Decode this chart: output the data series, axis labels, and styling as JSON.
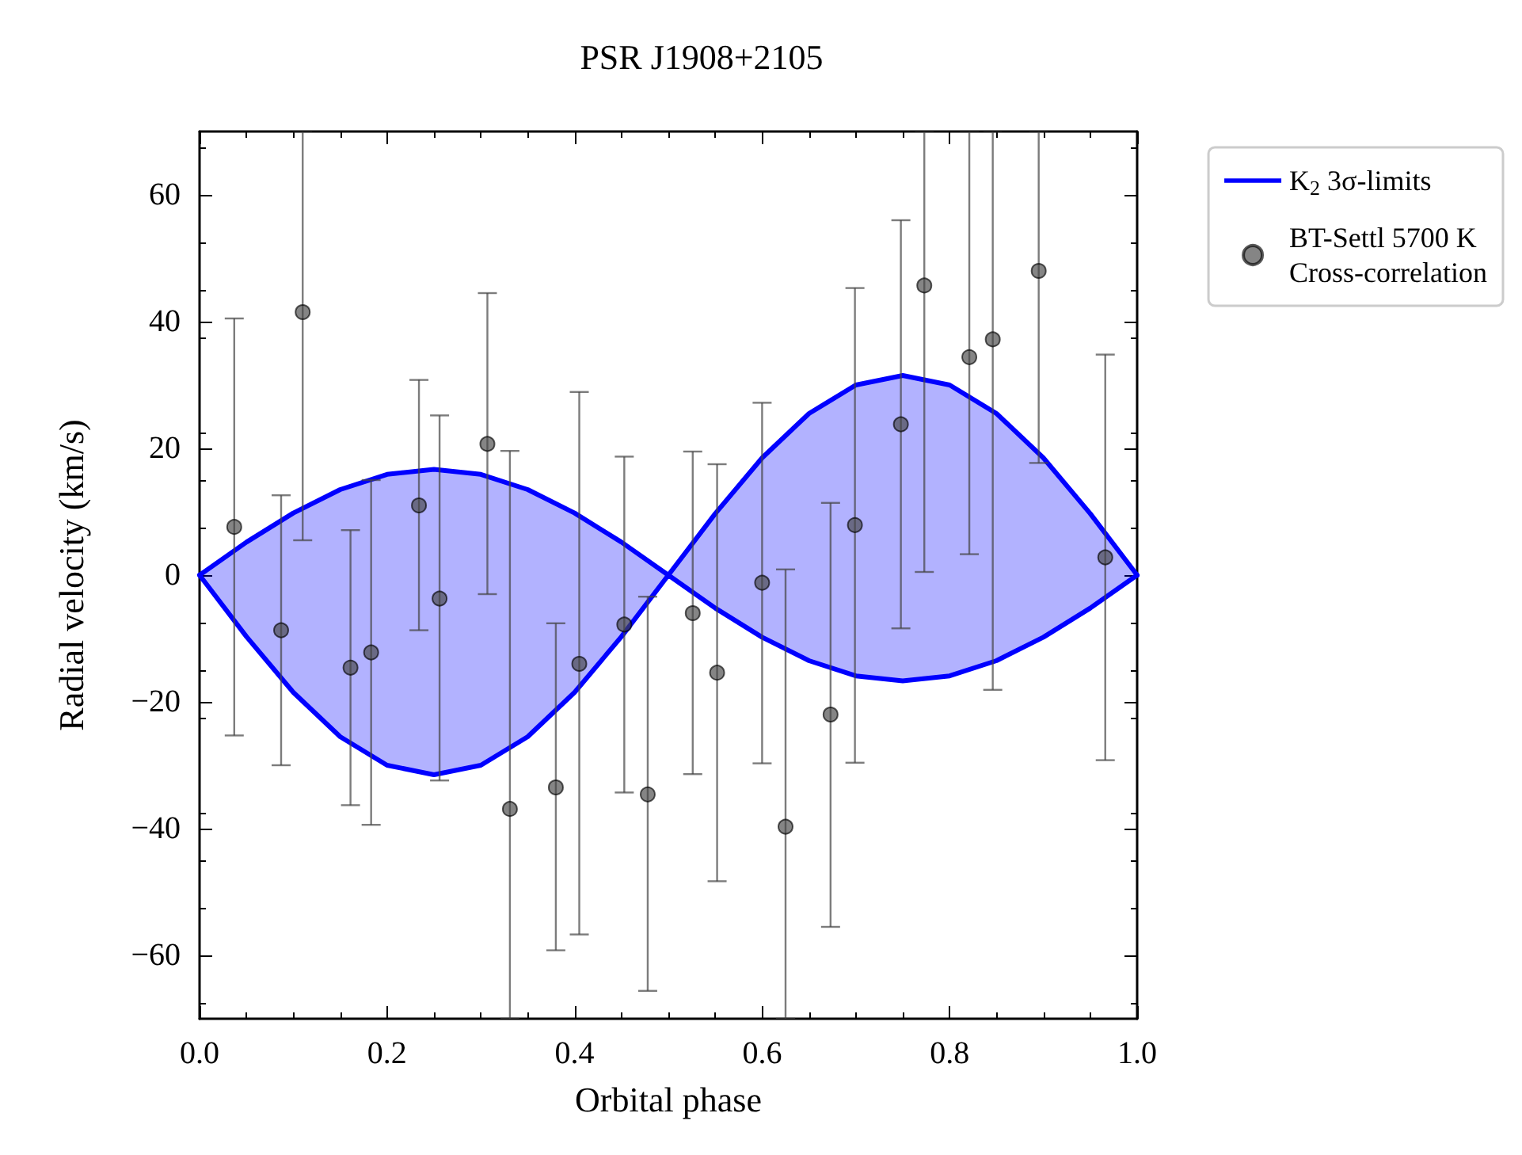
{
  "chart_data": {
    "type": "scatter",
    "title": "PSR J1908+2105",
    "xlabel": "Orbital phase",
    "ylabel": "Radial velocity (km/s)",
    "xlim": [
      0,
      1
    ],
    "xticks": [
      {
        "value": 0,
        "label": "0.0"
      },
      {
        "value": 0.2,
        "label": "0.2"
      },
      {
        "value": 0.4,
        "label": "0.4"
      },
      {
        "value": 0.6,
        "label": "0.6"
      },
      {
        "value": 0.8,
        "label": "0.8"
      },
      {
        "value": 1,
        "label": "1.0"
      }
    ],
    "ylim": [
      -70,
      70
    ],
    "yticks": [
      {
        "value": -60,
        "label": "−60"
      },
      {
        "value": -40,
        "label": "−40"
      },
      {
        "value": -20,
        "label": "−20"
      },
      0,
      20,
      40,
      60
    ],
    "grid": false,
    "legend": "right",
    "line_style": "solid",
    "series": [
      {
        "name": "K$_{2}$ 3σ-limits",
        "type": "line",
        "color": "#0000ff",
        "x": [
          0,
          0.05,
          0.1,
          0.15,
          0.2,
          0.25,
          0.3,
          0.35,
          0.4,
          0.45,
          0.5,
          0.55,
          0.6,
          0.65,
          0.7,
          0.75,
          0.8,
          0.85,
          0.9,
          0.95,
          1
        ],
        "values": [
          0,
          5.2,
          9.8,
          13.5,
          15.9,
          16.7,
          15.9,
          13.5,
          9.8,
          5.2,
          0,
          9.7,
          18.5,
          25.5,
          30.0,
          31.5,
          30.0,
          25.5,
          18.5,
          9.7,
          0
        ],
        "lower": [
          0,
          -9.7,
          -18.5,
          -25.5,
          -30.0,
          -31.5,
          -30.0,
          -25.5,
          -18.5,
          -9.7,
          0,
          -5.2,
          -9.8,
          -13.5,
          -15.9,
          -16.7,
          -15.9,
          -13.5,
          -9.8,
          -5.2,
          0
        ],
        "upper": [
          0,
          5.2,
          9.8,
          13.5,
          15.9,
          16.7,
          15.9,
          13.5,
          9.8,
          5.2,
          0,
          9.7,
          18.5,
          25.5,
          30.0,
          31.5,
          30.0,
          25.5,
          18.5,
          9.7,
          0
        ]
      },
      {
        "type": "line",
        "color": "#0000ff",
        "x": [
          0,
          0.05,
          0.1,
          0.15,
          0.2,
          0.25,
          0.3,
          0.35,
          0.4,
          0.45,
          0.5,
          0.55,
          0.6,
          0.65,
          0.7,
          0.75,
          0.8,
          0.85,
          0.9,
          0.95,
          1
        ],
        "values": [
          0,
          -9.7,
          -18.5,
          -25.5,
          -30.0,
          -31.5,
          -30.0,
          -25.5,
          -18.5,
          -9.7,
          0,
          -5.2,
          -9.8,
          -13.5,
          -15.9,
          -16.7,
          -15.9,
          -13.5,
          -9.8,
          -5.2,
          0
        ]
      },
      {
        "name": "BT-Settl 5700 K\nCross-correlation",
        "type": "scatter",
        "color": "#444444",
        "marker": "circle",
        "x": [
          0.037,
          0.087,
          0.11,
          0.161,
          0.183,
          0.234,
          0.256,
          0.307,
          0.331,
          0.38,
          0.405,
          0.453,
          0.478,
          0.526,
          0.552,
          0.6,
          0.625,
          0.673,
          0.699,
          0.748,
          0.773,
          0.821,
          0.846,
          0.895,
          0.966
        ],
        "values": [
          7.6,
          -8.7,
          41.5,
          -14.6,
          -12.2,
          11.0,
          -3.7,
          20.7,
          -36.9,
          -33.5,
          -14.0,
          -7.8,
          -34.6,
          -6.0,
          -15.4,
          -1.2,
          -39.7,
          -22.0,
          7.9,
          23.8,
          45.7,
          34.4,
          37.2,
          48,
          2.8
        ],
        "errors": [
          [
            -25.3,
            40.5
          ],
          [
            -30.0,
            12.6
          ],
          [
            5.5,
            70
          ],
          [
            -36.3,
            7.1
          ],
          [
            -39.4,
            15.0
          ],
          [
            -8.7,
            30.8
          ],
          [
            -32.4,
            25.2
          ],
          [
            -3.0,
            44.5
          ],
          [
            -70,
            19.6
          ],
          [
            -59.2,
            -7.6
          ],
          [
            -56.7,
            28.9
          ],
          [
            -34.3,
            18.7
          ],
          [
            -65.6,
            -3.4
          ],
          [
            -31.4,
            19.5
          ],
          [
            -48.3,
            17.5
          ],
          [
            -29.7,
            27.2
          ],
          [
            -70,
            0.9
          ],
          [
            -55.5,
            11.4
          ],
          [
            -29.6,
            45.3
          ],
          [
            -8.4,
            56.0
          ],
          [
            0.5,
            70
          ],
          [
            3.3,
            70
          ],
          [
            -18.1,
            70
          ],
          [
            17.7,
            70
          ],
          [
            -29.2,
            34.8
          ]
        ]
      }
    ]
  }
}
